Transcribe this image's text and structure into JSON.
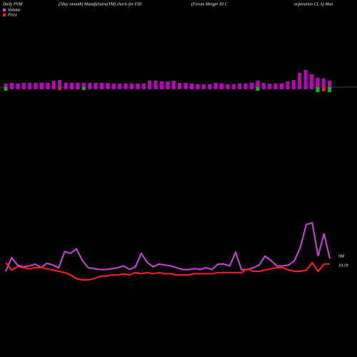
{
  "chart_data": [
    {
      "type": "bar",
      "title": "Daily PVM",
      "subtitle": "(5day smooth) MunafaSutra(TM) charts for FIII",
      "company": "(Forum Merger III C",
      "company2": "orporation  CL A) Mun",
      "series": [
        {
          "color": "#c000c0",
          "values": [
            5,
            6,
            5,
            6,
            6,
            6,
            6,
            6,
            9,
            10,
            6,
            6,
            6,
            6,
            6,
            6,
            6,
            6,
            5,
            5,
            5,
            5,
            5,
            5,
            9,
            9,
            8,
            8,
            9,
            6,
            6,
            5,
            4,
            4,
            4,
            6,
            5,
            4,
            4,
            5,
            5,
            6,
            9,
            6,
            5,
            5,
            5,
            8,
            10,
            20,
            24,
            18,
            13,
            12,
            9
          ]
        },
        {
          "colors": [
            "#00c000",
            "#c000c0",
            "#c000c0",
            "#c000c0",
            "#c000c0",
            "#c000c0",
            "#c000c0",
            "#c000c0",
            "#c000c0",
            "#e02020",
            "#c000c0",
            "#c000c0",
            "#c000c0",
            "#00c000",
            "#c000c0",
            "#c000c0",
            "#c000c0",
            "#c000c0",
            "#c000c0",
            "#c000c0",
            "#c000c0",
            "#c000c0",
            "#c000c0",
            "#c000c0",
            "#c000c0",
            "#c000c0",
            "#c000c0",
            "#c000c0",
            "#c000c0",
            "#c000c0",
            "#c000c0",
            "#c000c0",
            "#c000c0",
            "#c000c0",
            "#c000c0",
            "#c000c0",
            "#c000c0",
            "#c000c0",
            "#c000c0",
            "#c000c0",
            "#c000c0",
            "#c000c0",
            "#00c000",
            "#c000c0",
            "#c000c0",
            "#c000c0",
            "#c000c0",
            "#c000c0",
            "#c000c0",
            "#c000c0",
            "#c000c0",
            "#c000c0",
            "#00c000",
            "#e02020",
            "#00c000"
          ],
          "values": [
            5,
            3,
            3,
            3,
            3,
            3,
            3,
            3,
            3,
            4,
            3,
            3,
            3,
            4,
            3,
            3,
            3,
            3,
            3,
            3,
            3,
            3,
            3,
            3,
            3,
            3,
            3,
            3,
            3,
            3,
            3,
            3,
            3,
            3,
            3,
            3,
            3,
            3,
            3,
            3,
            3,
            3,
            5,
            3,
            3,
            3,
            3,
            3,
            3,
            3,
            3,
            3,
            7,
            6,
            7
          ]
        }
      ]
    },
    {
      "type": "line",
      "legend": [
        "Volume",
        "Price"
      ],
      "series": [
        {
          "name": "Volume",
          "color": "#d040e0",
          "label": "0M",
          "values": [
            28,
            43,
            35,
            33,
            34,
            36,
            32,
            37,
            35,
            32,
            50,
            48,
            53,
            40,
            32,
            31,
            30,
            30,
            31,
            32,
            34,
            30,
            33,
            48,
            38,
            33,
            36,
            35,
            34,
            32,
            30,
            30,
            31,
            30,
            32,
            30,
            36,
            36,
            34,
            49,
            30,
            30,
            32,
            35,
            45,
            40,
            34,
            34,
            35,
            40,
            55,
            80,
            82,
            45,
            70,
            42
          ]
        },
        {
          "name": "Price",
          "color": "#ff2020",
          "label": "10.19",
          "values": [
            25,
            19,
            22,
            21,
            20,
            21,
            21,
            20,
            19,
            18,
            17,
            15,
            12,
            11,
            11,
            12,
            14,
            14,
            15,
            15,
            16,
            15,
            17,
            16,
            17,
            16,
            17,
            16,
            16,
            15,
            15,
            15,
            16,
            16,
            16,
            16,
            17,
            17,
            17,
            17,
            17,
            20,
            18,
            18,
            19,
            20,
            21,
            21,
            19,
            18,
            18,
            19,
            25,
            18,
            24,
            24
          ]
        }
      ]
    }
  ]
}
